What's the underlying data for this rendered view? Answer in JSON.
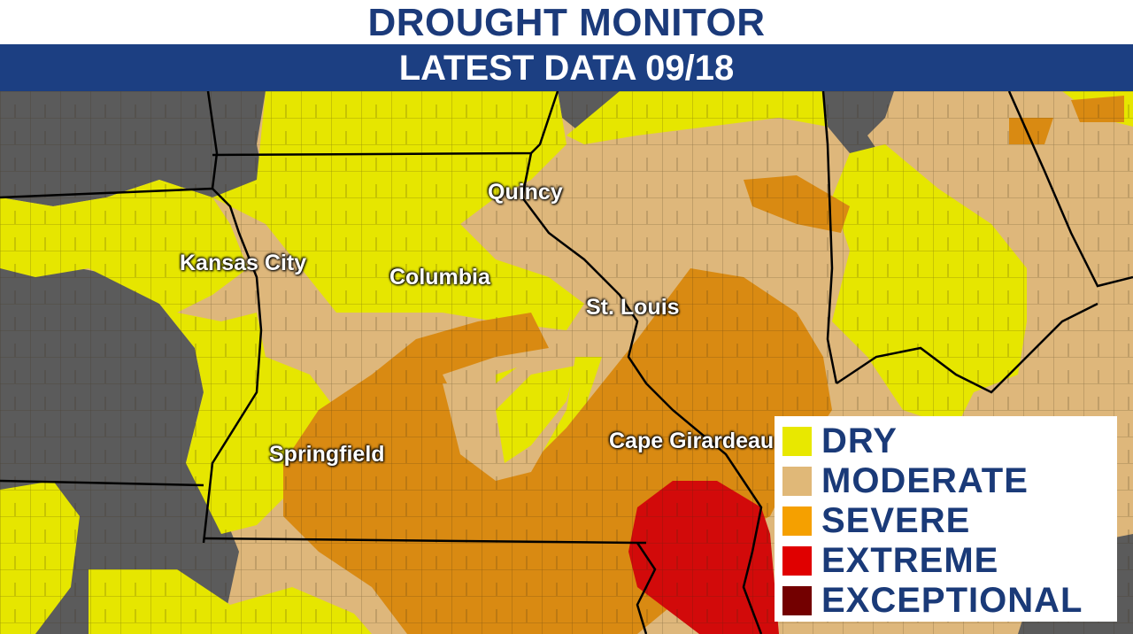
{
  "header": {
    "title": "DROUGHT MONITOR",
    "subtitle": "LATEST DATA 09/18"
  },
  "cities": {
    "kansas_city": "Kansas City",
    "columbia": "Columbia",
    "quincy": "Quincy",
    "st_louis": "St. Louis",
    "springfield": "Springfield",
    "cape_girardeau": "Cape Girardeau"
  },
  "legend": [
    {
      "label": "DRY",
      "color": "#e8e800"
    },
    {
      "label": "MODERATE",
      "color": "#e0b878"
    },
    {
      "label": "SEVERE",
      "color": "#f5a000"
    },
    {
      "label": "EXTREME",
      "color": "#e00000"
    },
    {
      "label": "EXCEPTIONAL",
      "color": "#730000"
    }
  ],
  "map_colors": {
    "none": "#5b5b5b",
    "dry": "#e6e600",
    "moderate": "#deb77b",
    "severe": "#d98a12",
    "extreme": "#d20a0a"
  }
}
